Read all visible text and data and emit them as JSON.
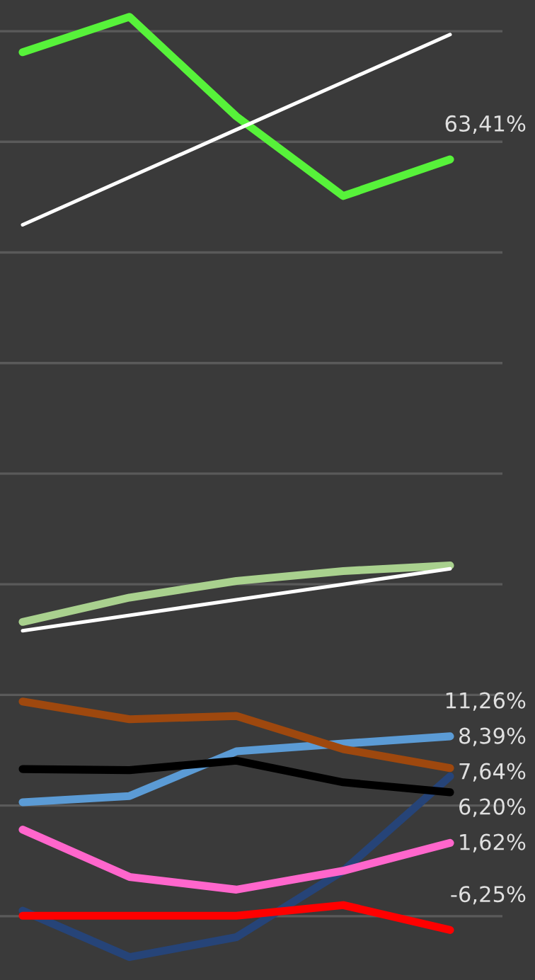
{
  "chart_data": {
    "type": "line",
    "categories": [
      null,
      null,
      null,
      null,
      null
    ],
    "ylim": [
      -10.77,
      77.82
    ],
    "yticks": [
      {
        "value": -5,
        "label": null
      },
      {
        "value": 5,
        "label": null
      },
      {
        "value": 15,
        "label": null
      },
      {
        "value": 25,
        "label": null
      },
      {
        "value": 35,
        "label": null
      },
      {
        "value": 45,
        "label": null
      },
      {
        "value": 55,
        "label": null
      },
      {
        "value": 65,
        "label": null
      },
      {
        "value": 75,
        "label": null
      }
    ],
    "grid": "y",
    "legend": false,
    "marker": "none",
    "line_style": "solid",
    "series": [
      {
        "color": "#57f23a",
        "values": [
          73.1,
          76.3,
          67.3,
          60.1,
          63.41
        ],
        "value_labels": [
          null,
          null,
          null,
          null,
          "63,41%"
        ]
      },
      {
        "color": "#ffffff",
        "values": [
          57.5,
          61.8,
          66.1,
          70.4,
          74.7
        ]
      },
      {
        "color": "#a9d18e",
        "values": [
          21.6,
          23.8,
          25.3,
          26.2,
          26.7
        ]
      },
      {
        "color": "#ffffff",
        "values": [
          20.8,
          22.2,
          23.6,
          25.0,
          26.4
        ]
      },
      {
        "color": "#5b9bd5",
        "values": [
          5.3,
          5.86,
          9.9,
          10.6,
          11.26
        ],
        "value_labels": [
          null,
          null,
          null,
          null,
          "11,26%"
        ]
      },
      {
        "color": "#9e480e",
        "values": [
          14.4,
          12.8,
          13.1,
          10.1,
          8.39
        ],
        "value_labels": [
          null,
          null,
          null,
          null,
          "8,39%"
        ]
      },
      {
        "color": "#264478",
        "values": [
          -4.5,
          -8.7,
          -6.9,
          -0.9,
          7.64
        ],
        "value_labels": [
          null,
          null,
          null,
          null,
          "7,64%"
        ]
      },
      {
        "color": "#000000",
        "values": [
          8.3,
          8.2,
          9.06,
          7.1,
          6.2
        ],
        "value_labels": [
          null,
          null,
          null,
          null,
          "6,20%"
        ]
      },
      {
        "color": "#ff66cc",
        "values": [
          2.82,
          -1.45,
          -2.6,
          -0.9,
          1.62
        ],
        "value_labels": [
          null,
          null,
          null,
          null,
          "1,62%"
        ]
      },
      {
        "color": "#ff0000",
        "values": [
          -4.96,
          -4.96,
          -4.96,
          -4.0,
          -6.25
        ],
        "value_labels": [
          null,
          null,
          null,
          null,
          "-6,25%"
        ]
      }
    ]
  }
}
